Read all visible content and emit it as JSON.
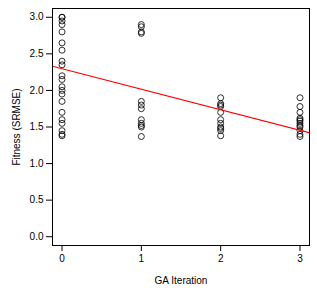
{
  "chart_data": {
    "type": "scatter",
    "x_label": "GA Iteration",
    "y_label": "Fitness (SRMSE)",
    "xlim": [
      -0.12,
      3.12
    ],
    "ylim": [
      -0.12,
      3.12
    ],
    "xticks": [
      0,
      1,
      2,
      3
    ],
    "yticks": [
      {
        "value": 0,
        "label": "0.0"
      },
      0.5,
      {
        "value": 1,
        "label": "1.0"
      },
      1.5,
      {
        "value": 2,
        "label": "2.0"
      },
      2.5,
      {
        "value": 3,
        "label": "3.0"
      }
    ],
    "grid": false,
    "series": [
      {
        "type": "scatter",
        "marker": "open_circle",
        "color": "#000000",
        "x": [
          0,
          0,
          0,
          0,
          0,
          0,
          0,
          0,
          0,
          0,
          0,
          0,
          0,
          0,
          0,
          0,
          0,
          0,
          0,
          0,
          0,
          1,
          1,
          1,
          1,
          1,
          1,
          1,
          1,
          1,
          1,
          1,
          1,
          2,
          2,
          2,
          2,
          2,
          2,
          2,
          2,
          2,
          2,
          2,
          3,
          3,
          3,
          3,
          3,
          3,
          3,
          3,
          3,
          3,
          3,
          3
        ],
        "values": [
          3.0,
          3.0,
          2.95,
          2.9,
          2.8,
          2.65,
          2.55,
          2.4,
          2.35,
          2.2,
          2.15,
          2.05,
          2.0,
          1.95,
          1.85,
          1.7,
          1.6,
          1.55,
          1.45,
          1.4,
          1.38,
          2.9,
          2.87,
          2.8,
          2.78,
          1.85,
          1.8,
          1.75,
          1.6,
          1.55,
          1.52,
          1.5,
          1.37,
          1.9,
          1.82,
          1.8,
          1.78,
          1.7,
          1.6,
          1.55,
          1.5,
          1.48,
          1.45,
          1.38,
          1.9,
          1.78,
          1.7,
          1.62,
          1.6,
          1.58,
          1.55,
          1.52,
          1.5,
          1.45,
          1.4,
          1.37
        ]
      },
      {
        "type": "line",
        "line_style": "solid",
        "color": "#ff0000",
        "x": [
          -0.12,
          3.12
        ],
        "values": [
          2.33,
          1.42
        ]
      }
    ]
  }
}
